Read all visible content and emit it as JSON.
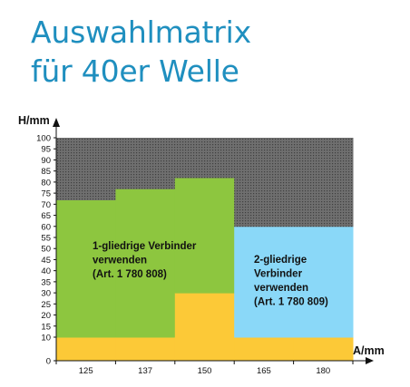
{
  "title_lines": [
    "Auswahlmatrix",
    "für 40er Welle"
  ],
  "chart_data": {
    "type": "heatmap",
    "ylabel": "H/mm",
    "xlabel": "A/mm",
    "ylim": [
      0,
      100
    ],
    "y_ticks": [
      0,
      10,
      15,
      20,
      25,
      30,
      35,
      40,
      45,
      50,
      55,
      60,
      65,
      70,
      75,
      80,
      85,
      90,
      95,
      100
    ],
    "categories": [
      "125",
      "137",
      "150",
      "165",
      "180"
    ],
    "columns": [
      {
        "name": "125",
        "cells": [
          [
            0,
            10,
            "yellow"
          ],
          [
            10,
            72,
            "green"
          ],
          [
            72,
            100,
            "gray"
          ]
        ]
      },
      {
        "name": "137",
        "cells": [
          [
            0,
            10,
            "yellow"
          ],
          [
            10,
            77,
            "green"
          ],
          [
            77,
            100,
            "gray"
          ]
        ]
      },
      {
        "name": "150",
        "cells": [
          [
            0,
            10,
            "yellow"
          ],
          [
            10,
            30,
            "yellow"
          ],
          [
            30,
            82,
            "green"
          ],
          [
            82,
            100,
            "gray"
          ]
        ]
      },
      {
        "name": "165",
        "cells": [
          [
            0,
            10,
            "yellow"
          ],
          [
            10,
            60,
            "blue"
          ],
          [
            60,
            100,
            "gray"
          ]
        ]
      },
      {
        "name": "180",
        "cells": [
          [
            0,
            10,
            "yellow"
          ],
          [
            10,
            60,
            "blue"
          ],
          [
            60,
            100,
            "gray"
          ]
        ]
      }
    ],
    "annotations": [
      {
        "text": [
          "1-gliedrige Verbinder",
          "verwenden",
          "(Art. 1 780 808)"
        ],
        "color": "green"
      },
      {
        "text": [
          "2-gliedrige",
          "Verbinder",
          "verwenden",
          "(Art. 1 780 809)"
        ],
        "color": "blue"
      }
    ],
    "colors": {
      "green": "#8dc63f",
      "blue": "#8ad8f8",
      "yellow": "#fcc937",
      "gray": "#707070",
      "gray_dots": "#4a4a4a"
    }
  }
}
